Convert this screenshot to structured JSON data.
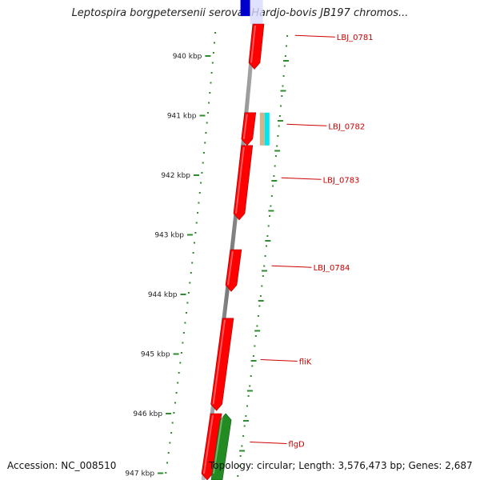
{
  "title": "Leptospira borgpetersenii serovar Hardjo-bovis JB197 chromos...",
  "footer": {
    "accession": "Accession: NC_008510",
    "summary": "Topology: circular; Length: 3,576,473 bp; Genes: 2,687"
  },
  "kbp_ticks": [
    {
      "kbp": 940,
      "label": "940 kbp"
    },
    {
      "kbp": 941,
      "label": "941 kbp"
    },
    {
      "kbp": 942,
      "label": "942 kbp"
    },
    {
      "kbp": 943,
      "label": "943 kbp"
    },
    {
      "kbp": 944,
      "label": "944 kbp"
    },
    {
      "kbp": 945,
      "label": "945 kbp"
    },
    {
      "kbp": 946,
      "label": "946 kbp"
    },
    {
      "kbp": 947,
      "label": "947 kbp"
    }
  ],
  "genes": [
    {
      "label": "LBJ_0781",
      "start": 939.3,
      "end": 940.22,
      "strand": "reverse",
      "color": "#ff0000"
    },
    {
      "label": "LBJ_0782",
      "start": 940.95,
      "end": 941.5,
      "strand": "reverse",
      "color": "#ff0000"
    },
    {
      "label": "LBJ_0783",
      "start": 941.5,
      "end": 942.75,
      "strand": "reverse",
      "color": "#ff0000"
    },
    {
      "label": "LBJ_0784",
      "start": 943.25,
      "end": 943.95,
      "strand": "reverse",
      "color": "#ff0000"
    },
    {
      "label": "fliK",
      "start": 944.4,
      "end": 945.95,
      "strand": "reverse",
      "color": "#ff0000"
    },
    {
      "label": "",
      "start": 946.0,
      "end": 947.3,
      "strand": "reverse",
      "color": "#ff0000"
    },
    {
      "label": "flgD",
      "start": 946.0,
      "end": 947.3,
      "strand": "forward",
      "color": "#228b22"
    }
  ],
  "small_features": [
    {
      "start": 940.95,
      "end": 941.5,
      "color": "#d2b48c"
    },
    {
      "start": 940.95,
      "end": 941.5,
      "color": "#00e5ee"
    }
  ],
  "top_feature": {
    "start": 939.0,
    "end": 939.25,
    "color": "#0000cc"
  }
}
